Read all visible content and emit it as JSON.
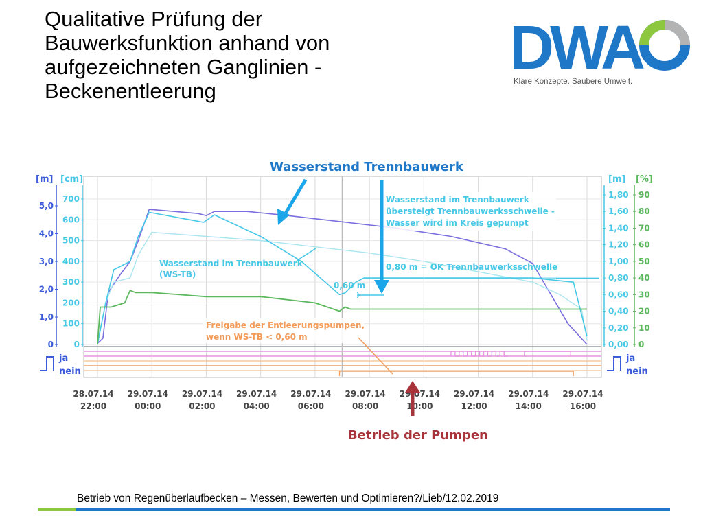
{
  "slide": {
    "title_lines": [
      "Qualitative Prüfung der",
      "Bauwerksfunktion anhand von",
      "aufgezeichneten Ganglinien -",
      "Beckenentleerung"
    ],
    "footer": "Betrieb von Regenüberlaufbecken – Messen, Bewerten und Optimieren?/Lieb/12.02.2019"
  },
  "logo": {
    "wordmark": "DWA",
    "slogan": "Klare Konzepte. Saubere Umwelt.",
    "colors": {
      "blue": "#1f77c8",
      "green": "#8dc63f",
      "gray": "#b3b3b3"
    }
  },
  "callouts": {
    "wasserstand": "Wasserstand Trennbauwerk",
    "pumpen": "Betrieb der Pumpen",
    "colors": {
      "arrow_blue": "#1aa6e8",
      "arrow_red": "#a8333a",
      "text_blue": "#1f77c8",
      "text_red": "#a8333a"
    }
  },
  "chart_data": {
    "type": "line",
    "x_ticks": [
      [
        "28.07.14",
        "22:00"
      ],
      [
        "29.07.14",
        "00:00"
      ],
      [
        "29.07.14",
        "02:00"
      ],
      [
        "29.07.14",
        "04:00"
      ],
      [
        "29.07.14",
        "06:00"
      ],
      [
        "29.07.14",
        "08:00"
      ],
      [
        "29.07.14",
        "10:00"
      ],
      [
        "29.07.14",
        "12:00"
      ],
      [
        "29.07.14",
        "14:00"
      ],
      [
        "29.07.14",
        "16:00"
      ]
    ],
    "left_axis_m": {
      "unit": "[m]",
      "ticks": [
        "5,0",
        "4,0",
        "3,0",
        "2,0",
        "1,0",
        "0"
      ]
    },
    "left_axis_cm": {
      "unit": "[cm]",
      "ticks": [
        "700",
        "600",
        "500",
        "400",
        "300",
        "200",
        "100",
        "0"
      ]
    },
    "right_axis_m": {
      "unit": "[m]",
      "ticks": [
        "1,80",
        "1,60",
        "1,40",
        "1,20",
        "1,00",
        "0,80",
        "0,60",
        "0,40",
        "0,20",
        "0,00"
      ]
    },
    "right_axis_pct": {
      "unit": "[%]",
      "ticks": [
        "90",
        "80",
        "70",
        "60",
        "50",
        "40",
        "30",
        "20",
        "10",
        "0"
      ]
    },
    "digital_labels": {
      "on": "ja",
      "off": "nein"
    },
    "annotations": {
      "ws_tb_label": [
        "Wasserstand im Trennbauwerk",
        "(WS-TB)"
      ],
      "level_060": "0,60 m",
      "kreis_label": [
        "Wasserstand im Trennbauwerk",
        "übersteigt Trennbauwerksschwelle -",
        "Wasser wird im Kreis gepumpt"
      ],
      "schwelle_label": "0,80 m = OK Trennbauwerksschwelle",
      "freigabe_label": [
        "Freigabe der Entleerungspumpen,",
        "wenn WS-TB < 0,60 m"
      ]
    },
    "series_colors": {
      "purple": "#7b6fe0",
      "light_blue": "#a9e6f0",
      "cyan": "#46c8e6",
      "green": "#5cb85c",
      "orange": "#f0a060",
      "pink": "#e696e0",
      "peach": "#f5c8a0"
    },
    "series": [
      {
        "axis": "left_cm",
        "x_hours": [
          0,
          0.2,
          0.4,
          0.8,
          1.2,
          1.5,
          1.9,
          3.7,
          4.0,
          4.3,
          5.5,
          7.0,
          9.0,
          11.0,
          13.0,
          15.0,
          16.0,
          17.3,
          18.0
        ],
        "values": [
          5,
          30,
          250,
          330,
          400,
          500,
          650,
          630,
          620,
          640,
          640,
          620,
          590,
          560,
          520,
          460,
          390,
          100,
          0
        ]
      },
      {
        "axis": "left_cm",
        "x_hours": [
          0,
          0.3,
          0.6,
          1.2,
          1.5,
          2.0,
          4.0,
          6.0,
          8.0,
          10.0,
          12.0,
          14.0,
          16.0,
          17.0,
          17.8,
          18.0
        ],
        "values": [
          10,
          200,
          300,
          320,
          430,
          540,
          520,
          500,
          470,
          440,
          400,
          350,
          300,
          240,
          170,
          20
        ]
      },
      {
        "axis": "right_m",
        "x_hours": [
          0,
          0.3,
          0.6,
          1.2,
          1.5,
          1.9,
          3.4,
          3.9,
          4.3,
          6.0,
          7.5,
          8.9,
          9.1,
          9.5,
          9.8,
          12.0,
          14.0,
          16.0,
          17.5,
          18.0
        ],
        "values": [
          0.0,
          0.5,
          0.9,
          1.0,
          1.3,
          1.59,
          1.5,
          1.47,
          1.56,
          1.3,
          1.0,
          0.6,
          0.62,
          0.75,
          0.8,
          0.8,
          0.8,
          0.8,
          0.75,
          0.1
        ]
      },
      {
        "axis": "left_cm",
        "x_hours": [
          0,
          0.1,
          0.5,
          1.0,
          1.2,
          1.4,
          2.0,
          4.0,
          6.0,
          8.0,
          8.9,
          9.1,
          9.3,
          12.0,
          15.0,
          17.0,
          17.5,
          18.0
        ],
        "values": [
          0,
          180,
          180,
          200,
          260,
          250,
          250,
          230,
          230,
          200,
          160,
          180,
          170,
          170,
          170,
          170,
          170,
          170
        ]
      }
    ]
  }
}
